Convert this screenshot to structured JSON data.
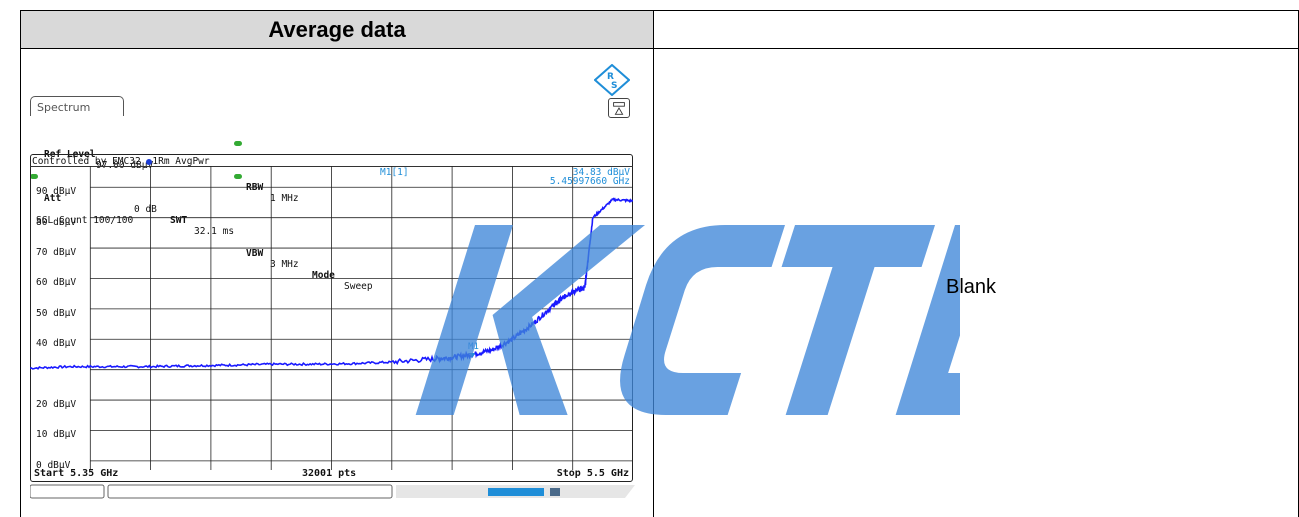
{
  "header": {
    "left_title": "Average data",
    "right_cell": "Blank"
  },
  "watermark": "KCTL",
  "analyzer": {
    "tab_label": "Spectrum",
    "ref_level_label": "Ref Level",
    "ref_level_value": "97.00 dBµV",
    "att_label": "Att",
    "att_value": "0 dB",
    "swt_label": "SWT",
    "swt_value": "32.1 ms",
    "rbw_label": "RBW",
    "rbw_value": "1 MHz",
    "vbw_label": "VBW",
    "vbw_value": "3 MHz",
    "mode_label": "Mode",
    "mode_value": "Sweep",
    "sgl_count": "SGL Count 100/100",
    "controlled_by": "Controlled by EMC32",
    "trace_label": "1Rm AvgPwr",
    "marker_name": "M1[1]",
    "marker_level": "34.83 dBµV",
    "marker_freq": "5.45997660 GHz",
    "marker_tag": "M1",
    "start": "Start 5.35 GHz",
    "points": "32001 pts",
    "stop": "Stop 5.5 GHz",
    "y_ticks": [
      "90 dBµV",
      "80 dBµV",
      "70 dBµV",
      "60 dBµV",
      "50 dBµV",
      "40 dBµV",
      "20 dBµV",
      "10 dBµV",
      "0 dBµV"
    ],
    "colors": {
      "trace": "#1a1aff",
      "marker": "#1f8ed8"
    }
  },
  "chart_data": {
    "type": "line",
    "xlabel": "",
    "ylabel": "",
    "xlim": [
      5.35,
      5.5
    ],
    "ylim": [
      -3,
      97
    ],
    "series": [
      {
        "x": [
          5.35,
          5.36,
          5.37,
          5.38,
          5.39,
          5.4,
          5.41,
          5.42,
          5.43,
          5.44,
          5.45,
          5.455,
          5.46,
          5.465,
          5.47,
          5.475,
          5.48,
          5.482,
          5.484,
          5.486,
          5.488,
          5.49,
          5.495,
          5.5
        ],
        "y": [
          30.5,
          31,
          31,
          31,
          31.3,
          31.5,
          31.8,
          31.8,
          32,
          32.5,
          33.5,
          34,
          35,
          36.5,
          40,
          45,
          51,
          53,
          55,
          56,
          57,
          80,
          86,
          85.5
        ]
      }
    ],
    "marker": {
      "x": 5.4599766,
      "y": 34.83
    }
  }
}
